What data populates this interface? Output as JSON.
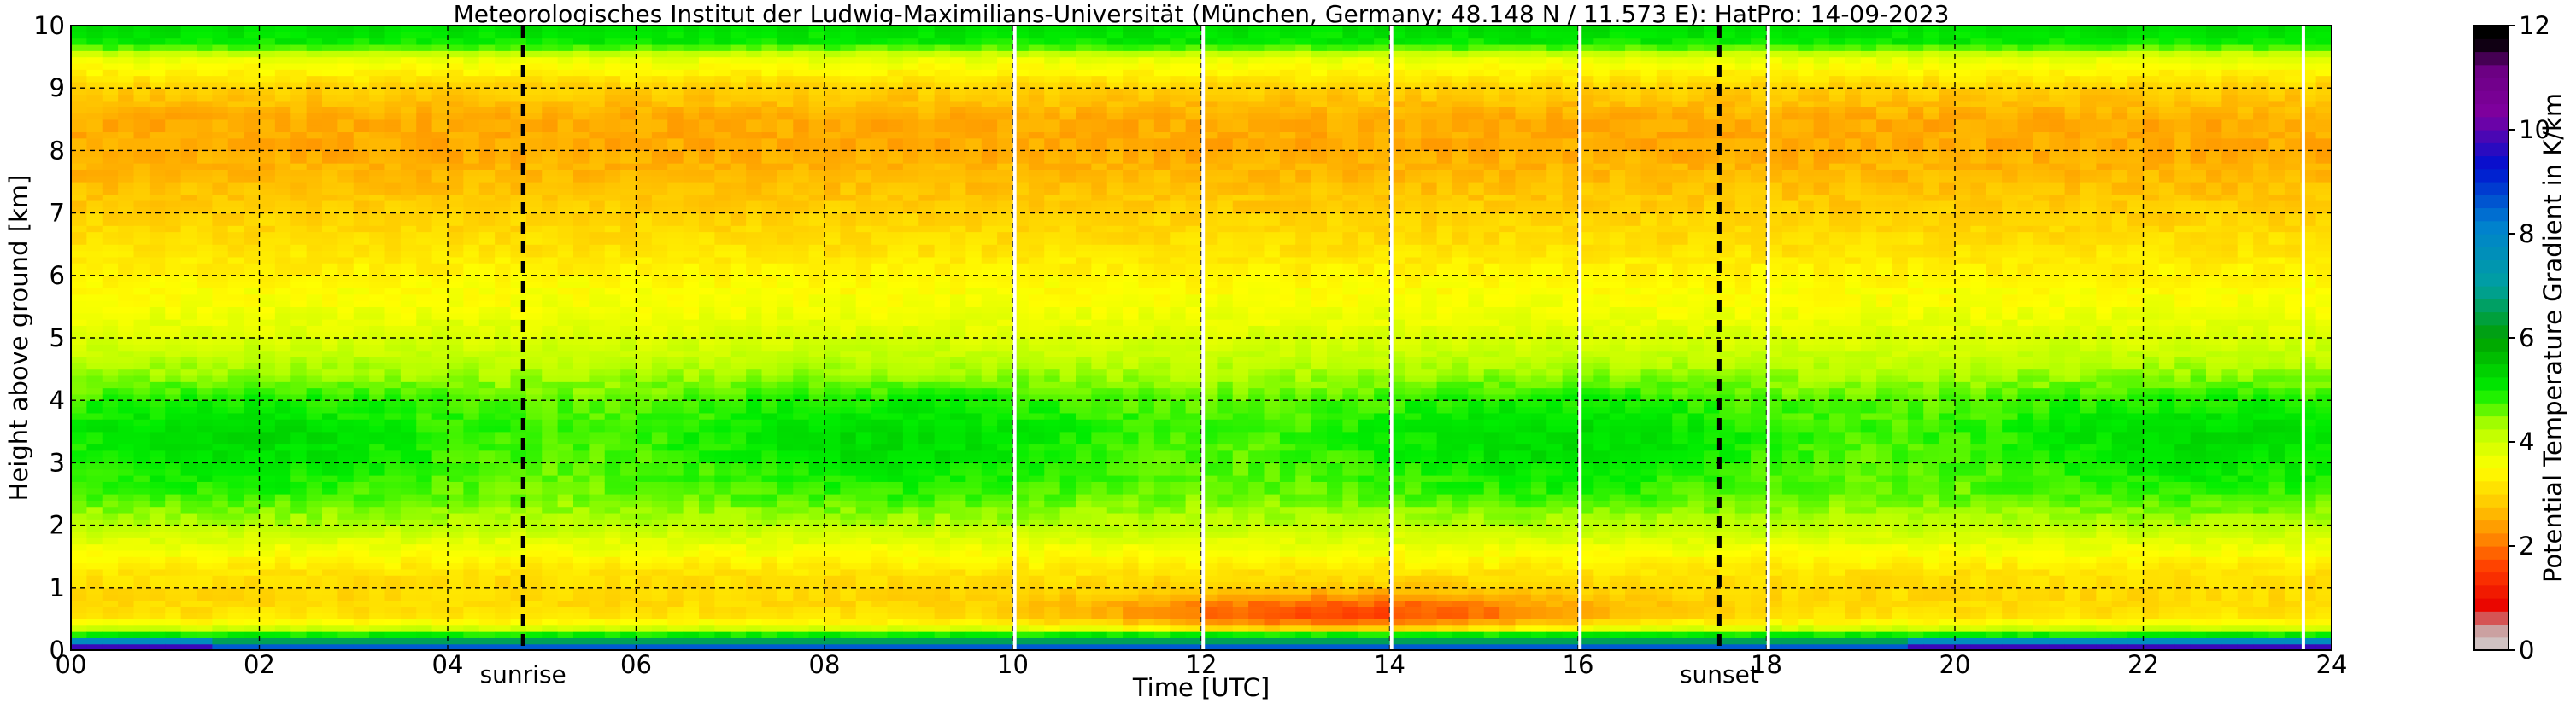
{
  "chart_data": {
    "type": "heatmap",
    "title": "Meteorologisches Institut der Ludwig-Maximilians-Universität (München, Germany; 48.148 N / 11.573 E):    HatPro: 14-09-2023",
    "xlabel": "Time [UTC]",
    "ylabel": "Height above ground [km]",
    "xlim": [
      0,
      24
    ],
    "ylim": [
      0,
      10
    ],
    "x_ticks": [
      "00",
      "02",
      "04",
      "06",
      "08",
      "10",
      "12",
      "14",
      "16",
      "18",
      "20",
      "22",
      "24"
    ],
    "y_ticks": [
      "0",
      "1",
      "2",
      "3",
      "4",
      "5",
      "6",
      "7",
      "8",
      "9",
      "10"
    ],
    "grid": true,
    "colorbar": {
      "label": "Potential Temperature Gradient in K/km",
      "range": [
        0,
        12
      ],
      "ticks": [
        "0",
        "2",
        "4",
        "6",
        "8",
        "10",
        "12"
      ],
      "colors": [
        {
          "value": 0.0,
          "color": "#d3d3d3"
        },
        {
          "value": 0.5,
          "color": "#c89090"
        },
        {
          "value": 0.8,
          "color": "#e80000"
        },
        {
          "value": 1.6,
          "color": "#ff4000"
        },
        {
          "value": 2.2,
          "color": "#ff8c00"
        },
        {
          "value": 2.8,
          "color": "#ffc800"
        },
        {
          "value": 3.5,
          "color": "#ffff00"
        },
        {
          "value": 4.3,
          "color": "#b4ff00"
        },
        {
          "value": 5.0,
          "color": "#00ee00"
        },
        {
          "value": 6.0,
          "color": "#00a000"
        },
        {
          "value": 7.0,
          "color": "#00a0a0"
        },
        {
          "value": 8.2,
          "color": "#0080d0"
        },
        {
          "value": 9.3,
          "color": "#0010d0"
        },
        {
          "value": 10.3,
          "color": "#8000a0"
        },
        {
          "value": 11.2,
          "color": "#6a0080"
        },
        {
          "value": 11.7,
          "color": "#000000"
        }
      ]
    },
    "profile": {
      "heights_km": [
        0.0,
        0.08,
        0.2,
        0.35,
        0.5,
        0.8,
        1.2,
        1.6,
        2.0,
        2.5,
        3.0,
        3.5,
        4.0,
        4.5,
        5.0,
        5.5,
        6.0,
        6.5,
        7.0,
        7.5,
        8.0,
        8.5,
        9.0,
        9.5,
        9.7,
        10.0
      ],
      "gradient_k_per_km": [
        9.5,
        8.0,
        5.5,
        4.0,
        3.2,
        3.0,
        3.1,
        3.6,
        4.2,
        4.7,
        4.9,
        5.0,
        4.8,
        4.3,
        3.9,
        3.6,
        3.4,
        3.1,
        2.9,
        2.7,
        2.5,
        2.5,
        2.9,
        3.8,
        5.0,
        5.2
      ]
    },
    "measurement_gaps_utc": [
      10.02,
      12.02,
      14.02,
      16.02,
      18.02,
      23.7
    ],
    "markers": [
      {
        "label": "sunrise",
        "time_utc": 4.8
      },
      {
        "label": "sunset",
        "time_utc": 17.5
      }
    ]
  }
}
